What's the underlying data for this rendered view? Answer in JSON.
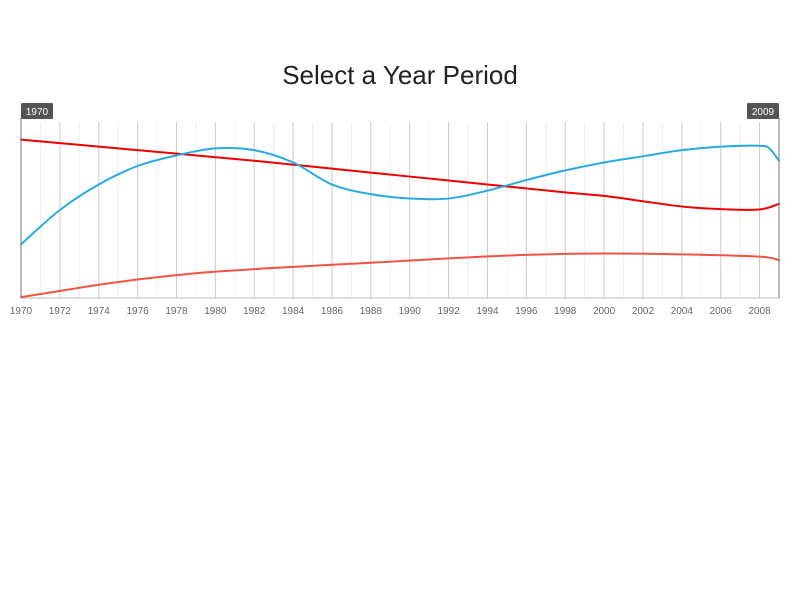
{
  "chart_data": {
    "type": "line",
    "title": "Select a Year Period",
    "xlabel": "",
    "ylabel": "",
    "xlim": [
      1970,
      2009
    ],
    "ylim": [
      0,
      100
    ],
    "x_ticks": [
      1970,
      1972,
      1974,
      1976,
      1978,
      1980,
      1982,
      1984,
      1986,
      1988,
      1990,
      1992,
      1994,
      1996,
      1998,
      2000,
      2002,
      2004,
      2006,
      2008
    ],
    "grid": true,
    "legend": "none",
    "selection": {
      "start_label": "1970",
      "end_label": "2009"
    },
    "series": [
      {
        "color": "#ee0000",
        "points": [
          [
            1970,
            90
          ],
          [
            1974,
            86
          ],
          [
            1978,
            82
          ],
          [
            1982,
            78
          ],
          [
            1986,
            73.5
          ],
          [
            1990,
            69
          ],
          [
            1994,
            64.5
          ],
          [
            1998,
            60
          ],
          [
            2000,
            58
          ],
          [
            2002,
            55
          ],
          [
            2004,
            52
          ],
          [
            2006,
            50.5
          ],
          [
            2008,
            50.3
          ],
          [
            2009,
            53.5
          ]
        ]
      },
      {
        "color": "#29aae2",
        "points": [
          [
            1970,
            30.5
          ],
          [
            1972,
            50
          ],
          [
            1974,
            64.5
          ],
          [
            1976,
            75
          ],
          [
            1978,
            81
          ],
          [
            1980,
            85
          ],
          [
            1982,
            84
          ],
          [
            1984,
            77
          ],
          [
            1986,
            64.5
          ],
          [
            1988,
            59
          ],
          [
            1990,
            56.5
          ],
          [
            1992,
            56.5
          ],
          [
            1994,
            61
          ],
          [
            1996,
            67
          ],
          [
            1998,
            72.5
          ],
          [
            2000,
            77
          ],
          [
            2002,
            80.5
          ],
          [
            2004,
            84
          ],
          [
            2006,
            86
          ],
          [
            2008,
            86.5
          ],
          [
            2008.5,
            85
          ],
          [
            2009,
            78
          ]
        ]
      },
      {
        "color": "#ee5544",
        "points": [
          [
            1970,
            0.5
          ],
          [
            1972,
            4
          ],
          [
            1974,
            7.5
          ],
          [
            1976,
            10.5
          ],
          [
            1978,
            13
          ],
          [
            1980,
            15
          ],
          [
            1984,
            17.7
          ],
          [
            1988,
            20
          ],
          [
            1992,
            22.5
          ],
          [
            1996,
            24.5
          ],
          [
            2000,
            25.3
          ],
          [
            2004,
            24.8
          ],
          [
            2008,
            23.5
          ],
          [
            2009,
            21.5
          ]
        ]
      }
    ]
  }
}
